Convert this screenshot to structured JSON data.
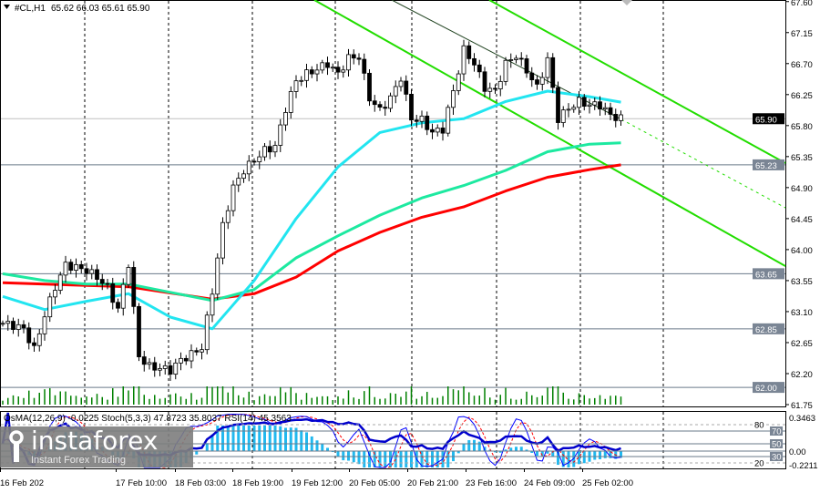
{
  "header": {
    "symbol": "#CL,H1",
    "ohlc": "65.62 66.03 65.61 65.90"
  },
  "indicator_header": "OsMA(12,26,9) -0.0225  Stoch(5,3,3) 47.8723 35.8037  RSI(14) 45.3563",
  "logo": {
    "brand": "instaforex",
    "tagline": "Instant Forex Trading"
  },
  "colors": {
    "ma_fast": "#22e5f0",
    "ma_mid": "#1de9a0",
    "ma_slow": "#ff0000",
    "channel": "#22dd00",
    "volume": "#008000",
    "osma": "#22b8ee",
    "rsi": "#0000cc",
    "stoch_main": "#0000ff",
    "stoch_signal": "#ff0000",
    "level_line": "#6a7a8a",
    "label_bg": "#7a8594"
  },
  "chart_data": {
    "type": "candlestick",
    "symbol": "#CL",
    "timeframe": "H1",
    "ylim": [
      61.75,
      67.6
    ],
    "yticks": [
      "67.60",
      "67.15",
      "66.70",
      "66.25",
      "65.80",
      "65.35",
      "64.90",
      "64.45",
      "64.00",
      "63.55",
      "63.10",
      "62.65",
      "62.20",
      "61.75"
    ],
    "xticks": [
      "16 Feb 202",
      "17 Feb 10:00",
      "18 Feb 03:00",
      "18 Feb 19:00",
      "19 Feb 12:00",
      "20 Feb 05:00",
      "20 Feb 21:00",
      "23 Feb 16:00",
      "24 Feb 09:00",
      "25 Feb 02:00"
    ],
    "closes_every_2_bars": [
      62.93,
      62.9,
      62.85,
      62.55,
      63.05,
      63.46,
      63.78,
      63.74,
      63.7,
      63.6,
      63.45,
      63.13,
      63.8,
      62.45,
      62.3,
      62.28,
      62.25,
      62.4,
      62.48,
      62.58,
      63.4,
      64.35,
      64.9,
      65.15,
      65.3,
      65.44,
      65.5,
      66.05,
      66.45,
      66.55,
      66.62,
      66.7,
      66.55,
      66.78,
      66.8,
      66.2,
      66.02,
      66.2,
      66.5,
      65.9,
      65.88,
      65.7,
      65.75,
      66.3,
      66.9,
      66.7,
      66.35,
      66.3,
      66.7,
      66.82,
      66.6,
      66.35,
      66.76,
      65.9,
      66.05,
      66.15,
      66.1,
      66.1,
      65.95,
      65.9
    ],
    "moving_averages_every_8_bars": {
      "fast": [
        63.32,
        63.13,
        63.25,
        63.36,
        63.02,
        62.85,
        63.55,
        64.45,
        65.2,
        65.7,
        65.84,
        65.9,
        66.15,
        66.3,
        66.22,
        66.14
      ],
      "mid": [
        63.65,
        63.55,
        63.5,
        63.5,
        63.38,
        63.26,
        63.42,
        63.88,
        64.2,
        64.5,
        64.75,
        64.93,
        65.15,
        65.42,
        65.53,
        65.55
      ],
      "slow": [
        63.52,
        63.5,
        63.48,
        63.46,
        63.37,
        63.28,
        63.36,
        63.6,
        63.98,
        64.25,
        64.47,
        64.62,
        64.85,
        65.05,
        65.16,
        65.23
      ]
    },
    "current_price": "65.90",
    "levels": [
      "65.23",
      "63.65",
      "62.85",
      "62.00"
    ],
    "oscillator": {
      "osma_max": "0.3463",
      "osma_zero": "0.00",
      "osma_min": "-0.2211",
      "levels": [
        "80",
        "70",
        "50",
        "30",
        "20"
      ]
    }
  }
}
